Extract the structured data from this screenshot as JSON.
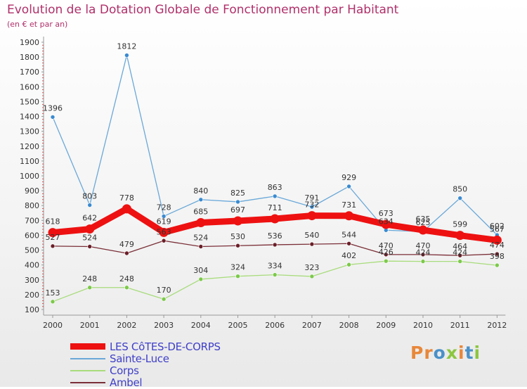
{
  "header": {
    "title": "Evolution de la Dotation Globale de Fonctionnement par Habitant",
    "subtitle": "(en € et par an)"
  },
  "logo": {
    "text": "Proxiti",
    "letters": [
      {
        "ch": "P",
        "color": "#e8873a"
      },
      {
        "ch": "r",
        "color": "#e8873a"
      },
      {
        "ch": "o",
        "color": "#4a90c8"
      },
      {
        "ch": "x",
        "color": "#8cc63f"
      },
      {
        "ch": "i",
        "color": "#e8873a"
      },
      {
        "ch": "t",
        "color": "#4a90c8"
      },
      {
        "ch": "i",
        "color": "#8cc63f"
      }
    ]
  },
  "chart_data": {
    "type": "line",
    "title": "Evolution de la Dotation Globale de Fonctionnement par Habitant",
    "subtitle": "(en € et par an)",
    "xlabel": "",
    "ylabel": "",
    "x": [
      "2000",
      "2001",
      "2002",
      "2003",
      "2004",
      "2005",
      "2006",
      "2007",
      "2008",
      "2009",
      "2010",
      "2011",
      "2012"
    ],
    "ylim": [
      100,
      1900
    ],
    "yticks": [
      100,
      200,
      300,
      400,
      500,
      600,
      700,
      800,
      900,
      1000,
      1100,
      1200,
      1300,
      1400,
      1500,
      1600,
      1700,
      1800,
      1900
    ],
    "grid": false,
    "legend_position": "bottom-left",
    "series": [
      {
        "name": "Sainte-Luce",
        "color": "#6aa8d8",
        "marker_color": "#3a8ad0",
        "values": [
          1396,
          803,
          1812,
          728,
          840,
          825,
          863,
          791,
          929,
          634,
          625,
          850,
          602
        ]
      },
      {
        "name": "Corps",
        "color": "#a8dc7c",
        "marker_color": "#7cc94a",
        "values": [
          153,
          248,
          248,
          170,
          304,
          324,
          334,
          323,
          402,
          426,
          424,
          424,
          398
        ]
      },
      {
        "name": "Ambel",
        "color": "#7a2f38",
        "marker_color": "#6a1f28",
        "values": [
          527,
          524,
          479,
          563,
          524,
          530,
          536,
          540,
          544,
          470,
          470,
          464,
          474
        ]
      },
      {
        "name": "LES CôTES-DE-CORPS",
        "color": "#ee1111",
        "marker_color": "#ee1111",
        "values": [
          618,
          642,
          778,
          619,
          685,
          697,
          711,
          732,
          731,
          673,
          635,
          599,
          567
        ]
      }
    ],
    "legend_order": [
      "LES CôTES-DE-CORPS",
      "Sainte-Luce",
      "Corps",
      "Ambel"
    ]
  }
}
